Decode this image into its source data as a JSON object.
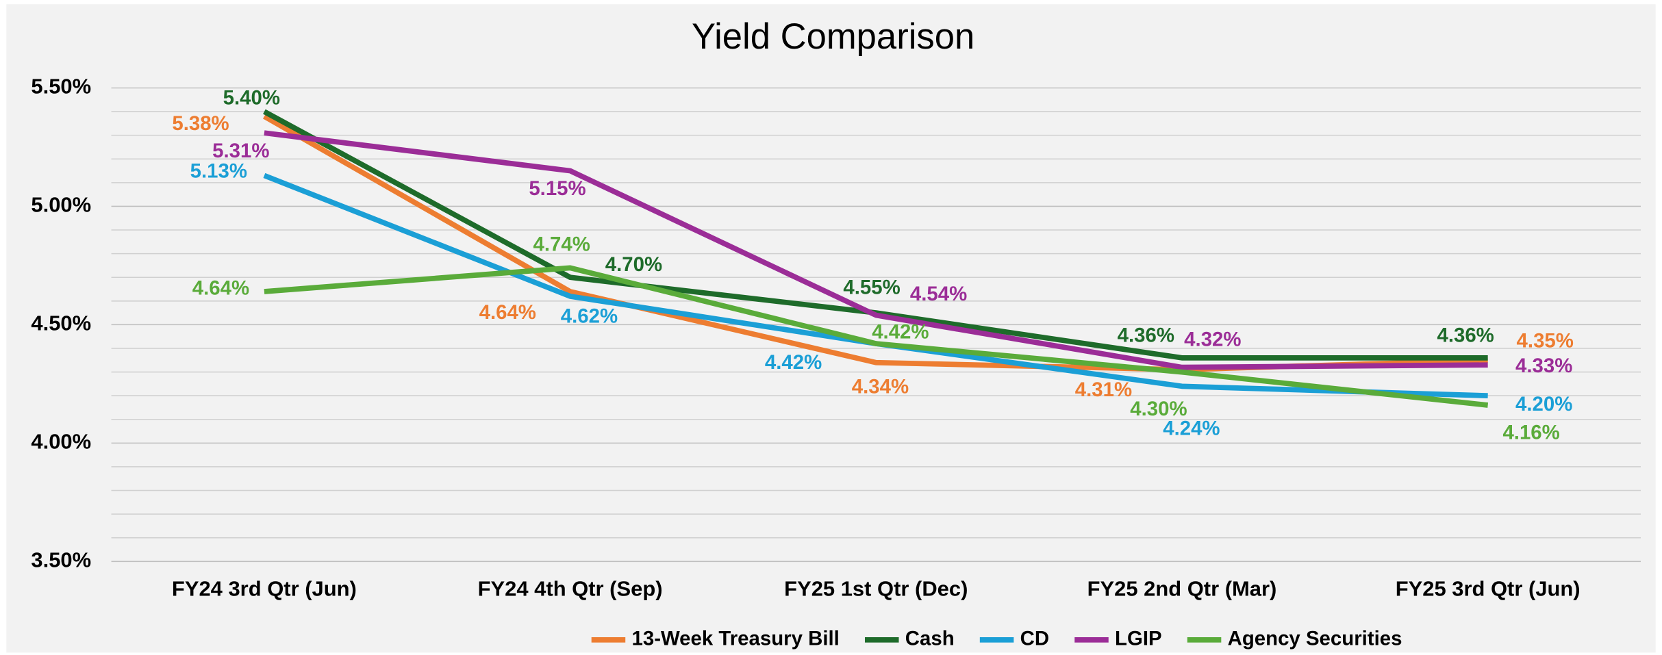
{
  "chart_data": {
    "type": "line",
    "title": "Yield Comparison",
    "categories": [
      "FY24 3rd Qtr (Jun)",
      "FY24 4th Qtr (Sep)",
      "FY25 1st Qtr (Dec)",
      "FY25 2nd Qtr (Mar)",
      "FY25 3rd Qtr (Jun)"
    ],
    "series": [
      {
        "name": "13-Week Treasury Bill",
        "color": "#ed7d31",
        "values": [
          5.38,
          4.64,
          4.34,
          4.31,
          4.35
        ],
        "value_labels": [
          "5.38%",
          "4.64%",
          "4.34%",
          "4.31%",
          "4.35%"
        ]
      },
      {
        "name": "Cash",
        "color": "#1e6b2a",
        "values": [
          5.4,
          4.7,
          4.55,
          4.36,
          4.36
        ],
        "value_labels": [
          "5.40%",
          "4.70%",
          "4.55%",
          "4.36%",
          "4.36%"
        ]
      },
      {
        "name": "CD",
        "color": "#1b9fd6",
        "values": [
          5.13,
          4.62,
          4.42,
          4.24,
          4.2
        ],
        "value_labels": [
          "5.13%",
          "4.62%",
          "4.42%",
          "4.24%",
          "4.20%"
        ]
      },
      {
        "name": "LGIP",
        "color": "#9b2d97",
        "values": [
          5.31,
          5.15,
          4.54,
          4.32,
          4.33
        ],
        "value_labels": [
          "5.31%",
          "5.15%",
          "4.54%",
          "4.32%",
          "4.33%"
        ]
      },
      {
        "name": "Agency Securities",
        "color": "#5aab3a",
        "values": [
          4.64,
          4.74,
          4.42,
          4.3,
          4.16
        ],
        "value_labels": [
          "4.64%",
          "4.74%",
          "4.42%",
          "4.30%",
          "4.16%"
        ]
      }
    ],
    "ylim": [
      3.5,
      5.5
    ],
    "yticks": [
      {
        "value": 3.5,
        "label": "3.50%"
      },
      {
        "value": 4.0,
        "label": "4.00%"
      },
      {
        "value": 4.5,
        "label": "4.50%"
      },
      {
        "value": 5.0,
        "label": "5.00%"
      },
      {
        "value": 5.5,
        "label": "5.50%"
      }
    ],
    "minor_yticks": [
      3.6,
      3.7,
      3.8,
      3.9,
      4.1,
      4.2,
      4.3,
      4.4,
      4.6,
      4.7,
      4.8,
      4.9,
      5.1,
      5.2,
      5.3,
      5.4
    ],
    "grid": true,
    "legend": "bottom"
  }
}
